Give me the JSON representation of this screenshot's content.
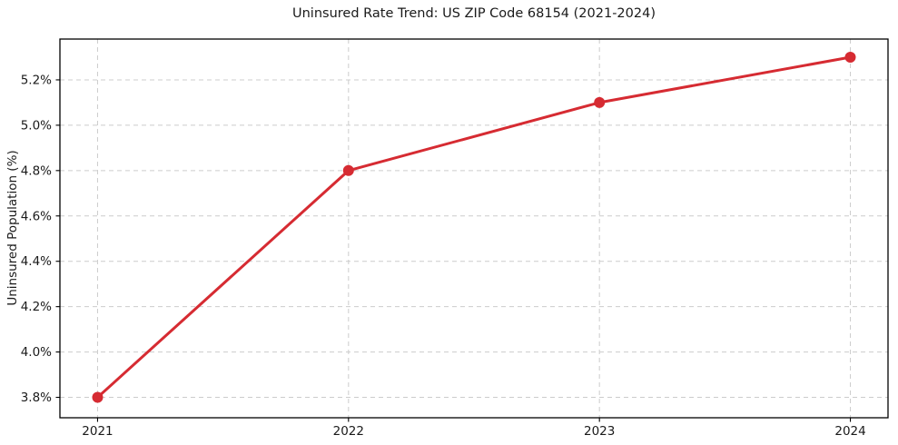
{
  "chart_data": {
    "type": "line",
    "title": "Uninsured Rate Trend: US ZIP Code 68154 (2021-2024)",
    "xlabel": "",
    "ylabel": "Uninsured Population (%)",
    "x": [
      2021,
      2022,
      2023,
      2024
    ],
    "series": [
      {
        "name": "Uninsured Rate",
        "values": [
          3.8,
          4.8,
          5.1,
          5.3
        ],
        "color": "#d62b32",
        "marker": "circle",
        "marker_radius": 6,
        "line_width": 3
      }
    ],
    "xticks": [
      2021,
      2022,
      2023,
      2024
    ],
    "xtick_labels": [
      "2021",
      "2022",
      "2023",
      "2024"
    ],
    "yticks": [
      3.8,
      4.0,
      4.2,
      4.4,
      4.6,
      4.8,
      5.0,
      5.2
    ],
    "ytick_labels": [
      "3.8%",
      "4.0%",
      "4.2%",
      "4.4%",
      "4.6%",
      "4.8%",
      "5.0%",
      "5.2%"
    ],
    "xlim": [
      2020.85,
      2024.15
    ],
    "ylim": [
      3.71,
      5.38
    ],
    "grid": true,
    "grid_style": "dashed",
    "legend_position": "none",
    "colors": {
      "line": "#d62b32",
      "grid": "#cccccc",
      "axis_border": "#000000",
      "tick": "#000000",
      "text": "#1a1a1a",
      "background": "#ffffff"
    }
  }
}
